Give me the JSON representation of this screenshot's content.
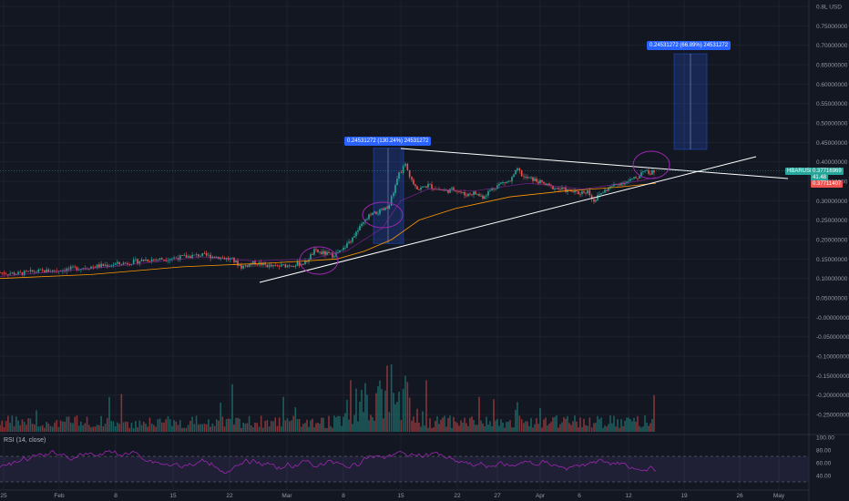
{
  "chart_data": {
    "type": "candlestick",
    "symbol": "HBARUSD",
    "currency": "USD",
    "y_axis": [
      "0.8L USD",
      "0.75000000",
      "0.70000000",
      "0.65000000",
      "0.60000000",
      "0.55000000",
      "0.50000000",
      "0.45000000",
      "0.40000000",
      "0.35000000",
      "0.30000000",
      "0.25000000",
      "0.20000000",
      "0.15000000",
      "0.10000000",
      "0.05000000",
      "-0.00000000",
      "-0.05000000",
      "-0.10000000",
      "-0.15000000",
      "-0.20000000",
      "-0.25000000"
    ],
    "y_values": [
      0.8,
      0.75,
      0.7,
      0.65,
      0.6,
      0.55,
      0.5,
      0.45,
      0.4,
      0.35,
      0.3,
      0.25,
      0.2,
      0.15,
      0.1,
      0.05,
      0.0,
      -0.05,
      -0.1,
      -0.15,
      -0.2,
      -0.25
    ],
    "x_axis": [
      "25",
      "Feb",
      "8",
      "15",
      "22",
      "Mar",
      "8",
      "15",
      "22",
      "27",
      "Apr",
      "6",
      "12",
      "19",
      "26",
      "May"
    ],
    "rsi_axis": [
      "100.00",
      "80.00",
      "60.00",
      "40.00"
    ],
    "rsi_values": [
      100,
      80,
      60,
      40
    ],
    "rsi_title": "RSI (14, close)",
    "last_price": "0.37716969",
    "last_price_sub": "41.48",
    "prev_price": "0.37711407",
    "measure_labels": [
      "0.24531272 (130.24%) 24531272",
      "0.24531272 (66.89%) 24531272"
    ],
    "colors": {
      "up": "#26a69a",
      "down": "#ef5350",
      "ma": "#ff9800",
      "ma2": "#9c27b0",
      "rsi": "#9c27b0",
      "measure": "#2962ff",
      "trend": "#ffffff"
    }
  }
}
